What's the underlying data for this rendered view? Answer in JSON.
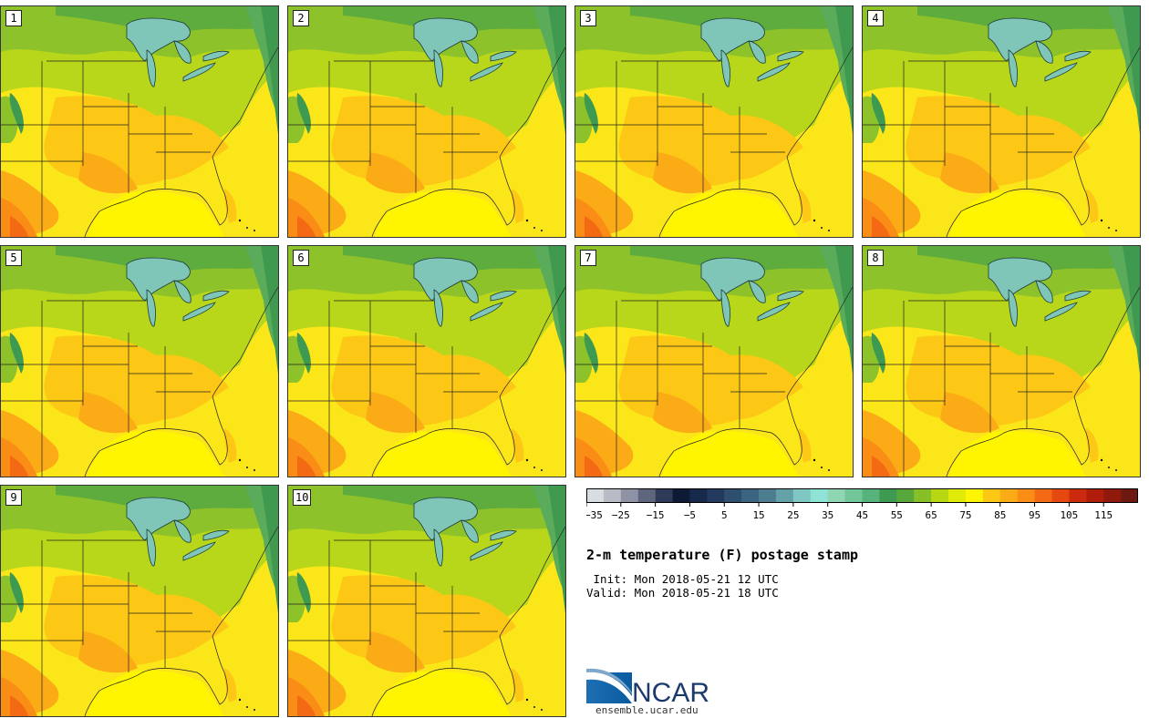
{
  "title": "2-m temperature (F) postage stamp",
  "init_line": " Init: Mon 2018-05-21 12 UTC",
  "valid_line": "Valid: Mon 2018-05-21 18 UTC",
  "members": [
    "1",
    "2",
    "3",
    "4",
    "5",
    "6",
    "7",
    "8",
    "9",
    "10"
  ],
  "colorbar": {
    "colors": [
      "#d8dde2",
      "#b7bcc6",
      "#8d93a4",
      "#5e667e",
      "#2f3a58",
      "#0c1a33",
      "#17294a",
      "#233a5e",
      "#2f4f70",
      "#3b6480",
      "#4d7e90",
      "#64a2a8",
      "#7ec7c3",
      "#8fe3d6",
      "#8ed7b2",
      "#73c69a",
      "#58b27c",
      "#3e9a50",
      "#58a73a",
      "#86bf26",
      "#b6d712",
      "#e0ea08",
      "#fff500",
      "#fcc815",
      "#fbab16",
      "#fa8d15",
      "#f46a14",
      "#e54910",
      "#cc2a0c",
      "#b01d0b",
      "#8f1a0b",
      "#6d190f"
    ],
    "tick_labels": [
      "−35",
      "−25",
      "−15",
      "−5",
      "5",
      "15",
      "25",
      "35",
      "45",
      "55",
      "65",
      "75",
      "85",
      "95",
      "105",
      "115"
    ]
  },
  "logo_text": "NCAR",
  "url": "ensemble.ucar.edu"
}
